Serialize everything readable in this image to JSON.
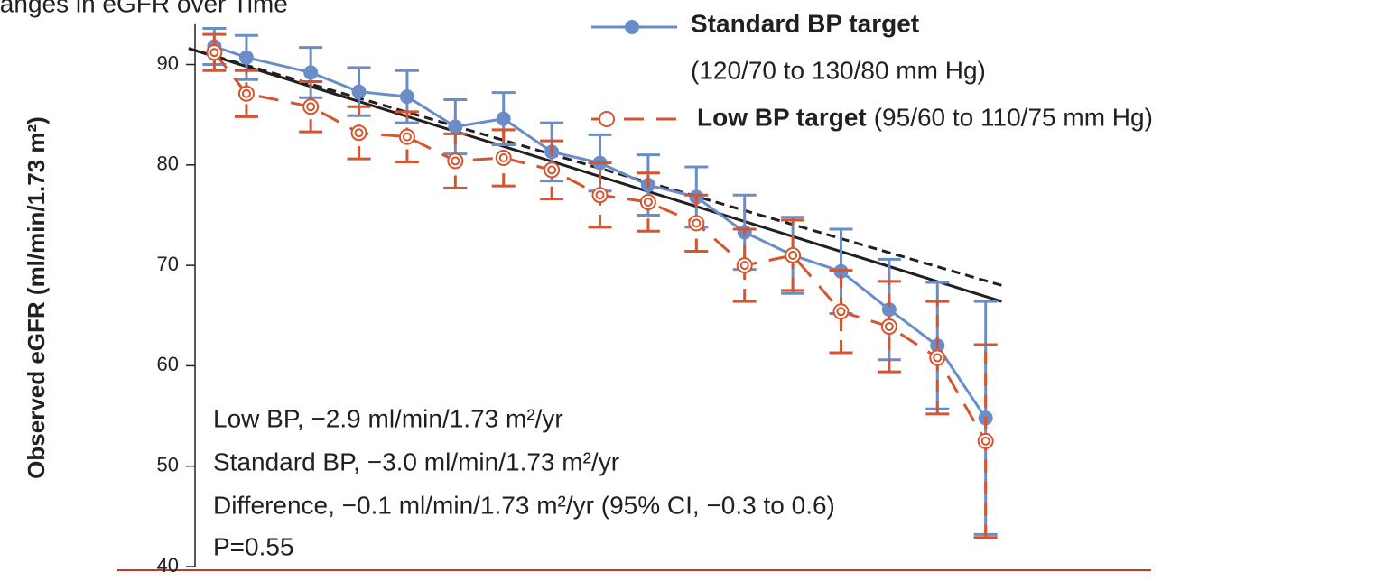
{
  "chart_data": {
    "type": "line",
    "title": "Changes in eGFR over Time",
    "y_label": "Observed eGFR (ml/min/1.73 m²)",
    "x": [
      0,
      2,
      6,
      9,
      12,
      15,
      18,
      21,
      24,
      27,
      30,
      33,
      36,
      39,
      42,
      45,
      48
    ],
    "xlim": [
      -1.2,
      58.3
    ],
    "ylim": [
      40,
      94
    ],
    "yticks": [
      40,
      50,
      60,
      70,
      80,
      90
    ],
    "series": [
      {
        "name": "Standard BP target",
        "description": "(120/70 to 130/80 mm Hg)",
        "color": "#6a8dc8",
        "dashed": false,
        "marker": "filled",
        "values": [
          91.8,
          90.7,
          89.2,
          87.3,
          86.8,
          83.8,
          84.6,
          81.3,
          80.2,
          78.0,
          76.8,
          73.3,
          71.0,
          69.4,
          65.6,
          62.0,
          54.8
        ],
        "errors": [
          1.8,
          2.2,
          2.5,
          2.4,
          2.6,
          2.7,
          2.6,
          2.9,
          2.8,
          3.0,
          3.0,
          3.7,
          3.8,
          4.2,
          5.0,
          6.3,
          11.6
        ]
      },
      {
        "name": "Low BP target",
        "description": "(95/60 to 110/75 mm Hg)",
        "color": "#d4552f",
        "dashed": true,
        "marker": "open",
        "values": [
          91.2,
          87.1,
          85.8,
          83.2,
          82.8,
          80.4,
          80.7,
          79.5,
          77.0,
          76.3,
          74.2,
          70.0,
          71.0,
          65.4,
          63.9,
          60.8,
          52.5
        ],
        "errors": [
          1.8,
          2.3,
          2.5,
          2.6,
          2.5,
          2.7,
          2.8,
          2.9,
          3.2,
          2.9,
          2.8,
          3.6,
          3.5,
          4.1,
          4.5,
          5.6,
          9.6
        ]
      }
    ],
    "fit_lines": [
      {
        "x": [
          -1.6,
          49
        ],
        "values": [
          91.6,
          66.4
        ],
        "color": "#231f20",
        "dashed": false
      },
      {
        "x": [
          -1.6,
          49
        ],
        "values": [
          91.6,
          68.0
        ],
        "color": "#231f20",
        "dashed": true
      }
    ],
    "annotations": [
      "Low BP, −2.9 ml/min/1.73 m²/yr",
      "Standard BP, −3.0 ml/min/1.73 m²/yr",
      "Difference, −0.1 ml/min/1.73 m²/yr (95% CI, −0.3 to 0.6)",
      "P=0.55"
    ]
  }
}
